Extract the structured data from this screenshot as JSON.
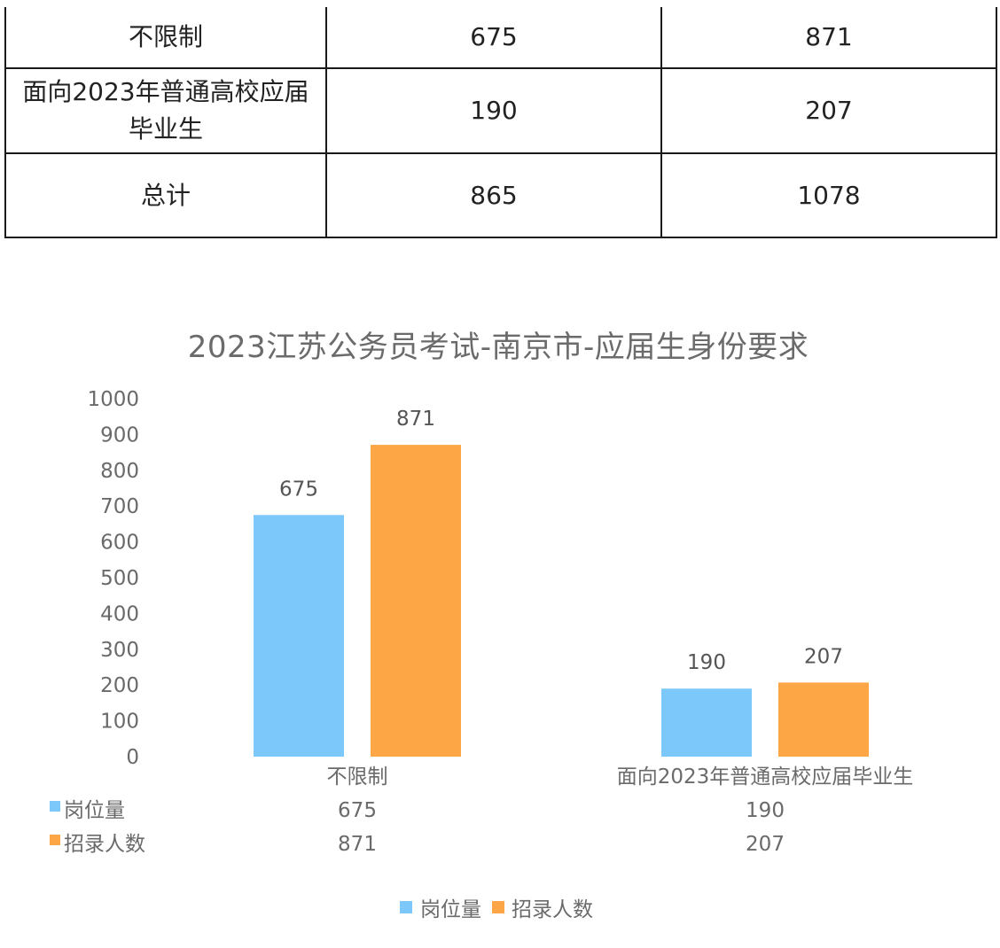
{
  "table": {
    "rows": [
      [
        "不限制",
        "675",
        "871"
      ],
      [
        "面向2023年普通高校应届毕业生",
        "190",
        "207"
      ],
      [
        "总计",
        "865",
        "1078"
      ]
    ]
  },
  "chart_data": {
    "type": "bar",
    "title": "2023江苏公务员考试-南京市-应届生身份要求",
    "categories": [
      "不限制",
      "面向2023年普通高校应届毕业生"
    ],
    "series": [
      {
        "name": "岗位量",
        "values": [
          675,
          190
        ],
        "color": "#7cc8fb"
      },
      {
        "name": "招录人数",
        "values": [
          871,
          207
        ],
        "color": "#fca645"
      }
    ],
    "ylim": [
      0,
      1000
    ],
    "yticks": [
      0,
      100,
      200,
      300,
      400,
      500,
      600,
      700,
      800,
      900,
      1000
    ],
    "xlabel": "",
    "ylabel": "",
    "grid": false,
    "data_table": true,
    "legend": "bottom"
  }
}
